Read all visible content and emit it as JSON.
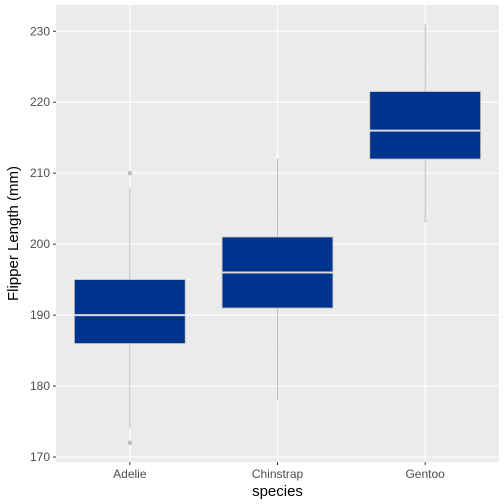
{
  "chart_data": {
    "type": "boxplot",
    "xlabel": "species",
    "ylabel": "Flipper Length (mm)",
    "ylim": [
      169.3,
      233.7
    ],
    "yticks": [
      170,
      180,
      190,
      200,
      210,
      220,
      230
    ],
    "grid": true,
    "categories": [
      "Adelie",
      "Chinstrap",
      "Gentoo"
    ],
    "boxes": [
      {
        "category": "Adelie",
        "whisker_low": 174,
        "q1": 186,
        "median": 190,
        "q3": 195,
        "whisker_high": 208,
        "outliers": [
          210,
          172
        ]
      },
      {
        "category": "Chinstrap",
        "whisker_low": 178,
        "q1": 191,
        "median": 196,
        "q3": 201,
        "whisker_high": 212,
        "outliers": []
      },
      {
        "category": "Gentoo",
        "whisker_low": 203,
        "q1": 212,
        "median": 216,
        "q3": 221.5,
        "whisker_high": 231,
        "outliers": []
      }
    ],
    "colors": {
      "box_fill": "#00338d",
      "box_outline": "#bdbdbd",
      "median": "#d9d9d9",
      "whisker": "#bdbdbd",
      "outlier": "#bdbdbd",
      "panel_bg": "#ebebeb",
      "grid_major": "#ffffff",
      "grid_minor": "#f2f2f2"
    }
  }
}
